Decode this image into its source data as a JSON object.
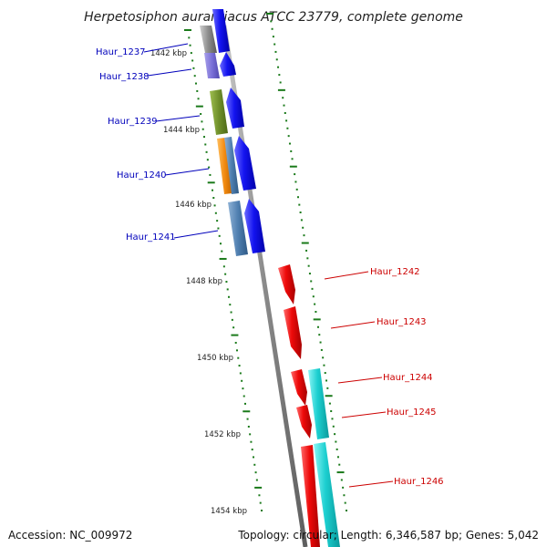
{
  "title": "Herpetosiphon aurantiacus ATCC 23779, complete genome",
  "colors": {
    "backbone": "#8a8a8a",
    "tick": "#1a7a1a",
    "label_forward": "#0000bb",
    "label_reverse": "#cc0000",
    "forward_arrow": "#1010ee",
    "reverse_arrow": "#ee0000",
    "cyan_feature": "#1ccfd0"
  },
  "kbp_marks": [
    "1442 kbp",
    "1444 kbp",
    "1446 kbp",
    "1448 kbp",
    "1450 kbp",
    "1452 kbp",
    "1454 kbp"
  ],
  "genes": [
    {
      "label": "Haur_1237",
      "strand": "forward",
      "color": "#0000bb"
    },
    {
      "label": "Haur_1238",
      "strand": "forward",
      "color": "#0000bb"
    },
    {
      "label": "Haur_1239",
      "strand": "forward",
      "color": "#0000bb"
    },
    {
      "label": "Haur_1240",
      "strand": "forward",
      "color": "#0000bb"
    },
    {
      "label": "Haur_1241",
      "strand": "forward",
      "color": "#0000bb"
    },
    {
      "label": "Haur_1242",
      "strand": "reverse",
      "color": "#cc0000"
    },
    {
      "label": "Haur_1243",
      "strand": "reverse",
      "color": "#cc0000"
    },
    {
      "label": "Haur_1244",
      "strand": "reverse",
      "color": "#cc0000"
    },
    {
      "label": "Haur_1245",
      "strand": "reverse",
      "color": "#cc0000"
    },
    {
      "label": "Haur_1246",
      "strand": "reverse",
      "color": "#cc0000"
    }
  ],
  "footer": {
    "accession": "Accession: NC_009972",
    "topology": "Topology: circular; Length: 6,346,587 bp; Genes: 5,042"
  }
}
